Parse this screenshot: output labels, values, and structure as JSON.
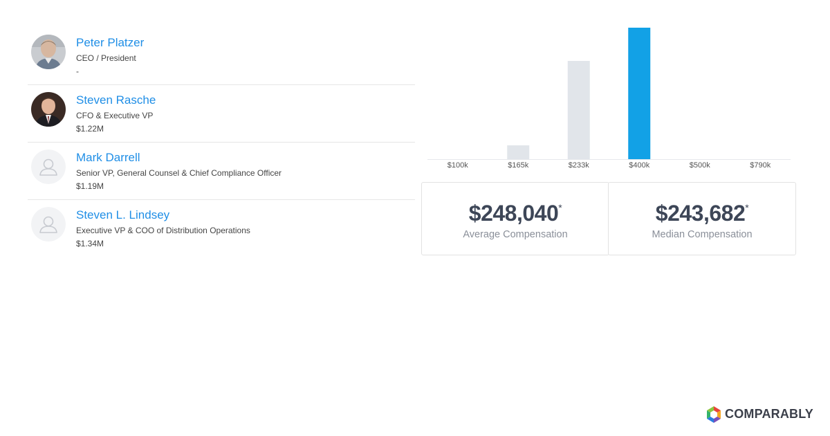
{
  "executives": [
    {
      "name": "Peter Platzer",
      "title": "CEO / President",
      "compensation": "-",
      "avatar": "photo"
    },
    {
      "name": "Steven Rasche",
      "title": "CFO & Executive VP",
      "compensation": "$1.22M",
      "avatar": "photo"
    },
    {
      "name": "Mark Darrell",
      "title": "Senior VP, General Counsel & Chief Compliance Officer",
      "compensation": "$1.19M",
      "avatar": "placeholder-person-icon"
    },
    {
      "name": "Steven L. Lindsey",
      "title": "Executive VP & COO of Distribution Operations",
      "compensation": "$1.34M",
      "avatar": "placeholder-person-icon"
    }
  ],
  "chart_data": {
    "type": "bar",
    "categories": [
      "$100k",
      "$165k",
      "$233k",
      "$400k",
      "$500k",
      "$790k"
    ],
    "values": [
      0,
      10,
      71,
      95,
      0,
      0
    ],
    "highlight_index": 3,
    "colors": {
      "default": "#e1e5ea",
      "highlight": "#12a1e6"
    },
    "ylim": [
      0,
      95
    ],
    "title": "",
    "xlabel": "",
    "ylabel": "",
    "grid": false
  },
  "stats": {
    "average": {
      "value": "$248,040",
      "marker": "*",
      "label": "Average Compensation"
    },
    "median": {
      "value": "$243,682",
      "marker": "*",
      "label": "Median Compensation"
    }
  },
  "branding": {
    "logo_text": "COMPARABLY",
    "logo_icon": "comparably-logo-icon"
  }
}
